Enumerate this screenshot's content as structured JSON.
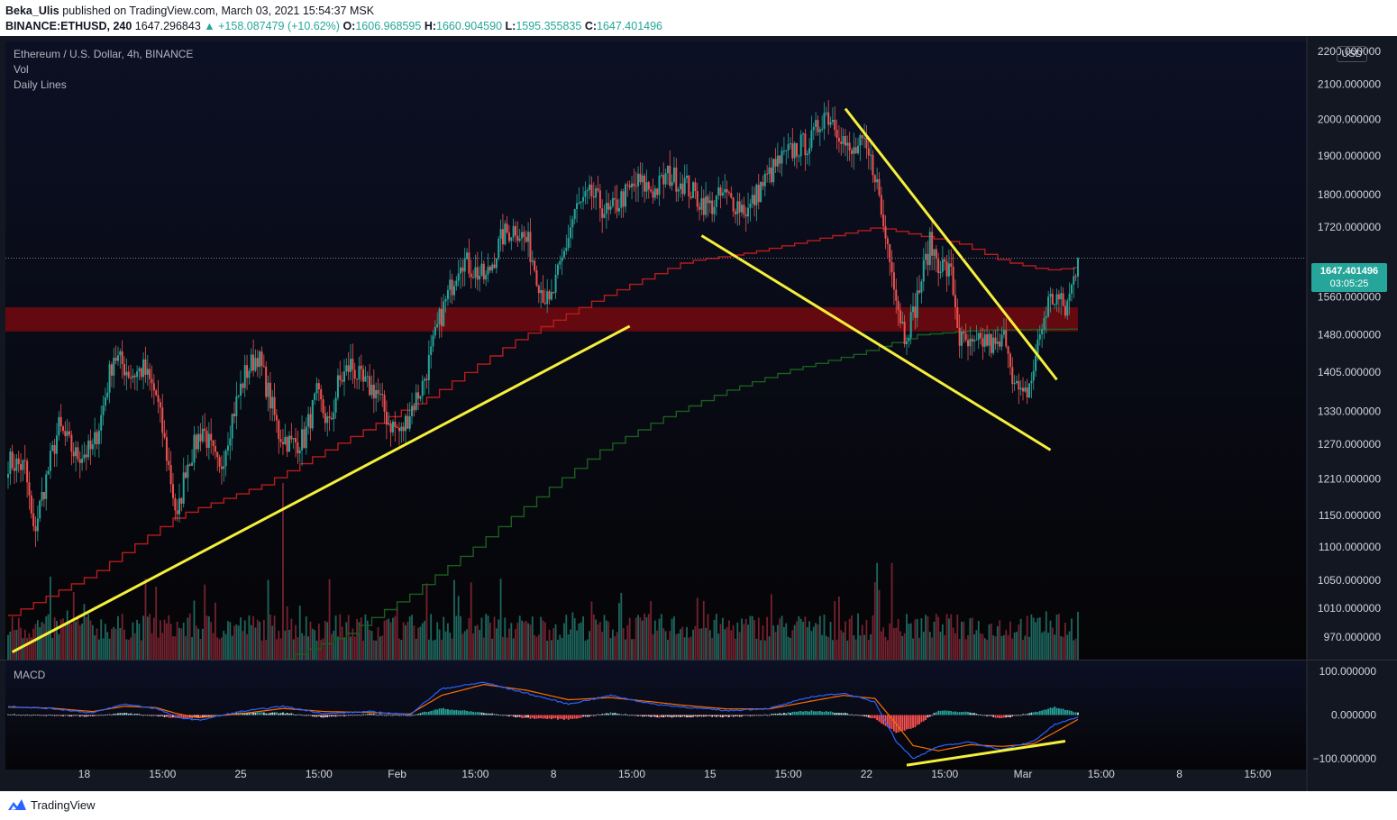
{
  "header": {
    "author": "Beka_Ulis",
    "published_text": "published on TradingView.com, March 03, 2021 15:54:37 MSK",
    "symbol": "BINANCE:ETHUSD, 240",
    "last": "1647.296843",
    "change": "▲ +158.087479 (+10.62%)",
    "o_label": "O:",
    "o_value": "1606.968595",
    "h_label": "H:",
    "h_value": "1660.904590",
    "l_label": "L:",
    "l_value": "1595.355835",
    "c_label": "C:",
    "c_value": "1647.401496"
  },
  "legend": {
    "title": "Ethereum / U.S. Dollar, 4h, BINANCE",
    "vol": "Vol",
    "daily": "Daily Lines",
    "macd": "MACD"
  },
  "currency": "USD",
  "price_label": {
    "value": "1647.401496",
    "countdown": "03:05:25"
  },
  "footer": {
    "brand": "TradingView"
  },
  "colors": {
    "background": "#0c0e1a",
    "up": "#26a69a",
    "down": "#ef5350",
    "resistance_band": "#6b0a0f",
    "trendline": "#f5f03a",
    "daily_red": "#b71c1c",
    "daily_green": "#1b5e20",
    "macd_line": "#2962ff",
    "signal_line": "#ff6d00"
  },
  "chart_data": {
    "type": "candlestick",
    "title": "Ethereum / U.S. Dollar, 4h, BINANCE",
    "y_scale": "log",
    "ylim": [
      940,
      2230
    ],
    "y_ticks": [
      970,
      1010,
      1050,
      1100,
      1150,
      1210,
      1270,
      1330,
      1405,
      1480,
      1560,
      1720,
      1800,
      1900,
      2000,
      2100,
      2200
    ],
    "y_tick_labels": [
      "970.000000",
      "1010.000000",
      "1050.000000",
      "1100.000000",
      "1150.000000",
      "1210.000000",
      "1270.000000",
      "1330.000000",
      "1405.000000",
      "1480.000000",
      "1560.000000",
      "1720.000000",
      "1800.000000",
      "1900.000000",
      "2000.000000",
      "2100.000000",
      "2200.000000"
    ],
    "x_tick_labels": [
      "18",
      "15:00",
      "25",
      "15:00",
      "Feb",
      "15:00",
      "8",
      "15:00",
      "15",
      "15:00",
      "22",
      "15:00",
      "Mar",
      "15:00",
      "8",
      "15:00"
    ],
    "x_tick_bars": [
      36,
      73,
      110,
      147,
      184,
      221,
      258,
      295,
      332,
      369,
      406,
      443,
      480,
      517,
      554,
      591
    ],
    "bar_count": 507,
    "last_close": 1647.401496,
    "anchors": [
      [
        0,
        1240
      ],
      [
        8,
        1230
      ],
      [
        12,
        1120
      ],
      [
        16,
        1180
      ],
      [
        24,
        1300
      ],
      [
        32,
        1250
      ],
      [
        40,
        1260
      ],
      [
        44,
        1320
      ],
      [
        50,
        1440
      ],
      [
        58,
        1400
      ],
      [
        64,
        1410
      ],
      [
        70,
        1360
      ],
      [
        76,
        1230
      ],
      [
        80,
        1140
      ],
      [
        84,
        1230
      ],
      [
        92,
        1300
      ],
      [
        100,
        1220
      ],
      [
        106,
        1320
      ],
      [
        112,
        1400
      ],
      [
        118,
        1440
      ],
      [
        124,
        1350
      ],
      [
        128,
        1290
      ],
      [
        134,
        1270
      ],
      [
        140,
        1280
      ],
      [
        146,
        1360
      ],
      [
        152,
        1300
      ],
      [
        156,
        1380
      ],
      [
        162,
        1420
      ],
      [
        168,
        1380
      ],
      [
        174,
        1370
      ],
      [
        180,
        1310
      ],
      [
        186,
        1290
      ],
      [
        190,
        1330
      ],
      [
        196,
        1380
      ],
      [
        200,
        1440
      ],
      [
        204,
        1510
      ],
      [
        210,
        1590
      ],
      [
        214,
        1650
      ],
      [
        220,
        1620
      ],
      [
        226,
        1600
      ],
      [
        234,
        1700
      ],
      [
        240,
        1720
      ],
      [
        246,
        1680
      ],
      [
        252,
        1580
      ],
      [
        256,
        1540
      ],
      [
        262,
        1640
      ],
      [
        268,
        1760
      ],
      [
        276,
        1800
      ],
      [
        284,
        1750
      ],
      [
        290,
        1790
      ],
      [
        298,
        1830
      ],
      [
        306,
        1810
      ],
      [
        312,
        1850
      ],
      [
        320,
        1830
      ],
      [
        326,
        1790
      ],
      [
        332,
        1770
      ],
      [
        338,
        1800
      ],
      [
        344,
        1780
      ],
      [
        350,
        1760
      ],
      [
        356,
        1820
      ],
      [
        364,
        1880
      ],
      [
        372,
        1920
      ],
      [
        380,
        1940
      ],
      [
        386,
        2020
      ],
      [
        390,
        2000
      ],
      [
        394,
        1960
      ],
      [
        398,
        1900
      ],
      [
        404,
        1930
      ],
      [
        410,
        1860
      ],
      [
        414,
        1720
      ],
      [
        418,
        1640
      ],
      [
        420,
        1560
      ],
      [
        424,
        1480
      ],
      [
        428,
        1520
      ],
      [
        432,
        1600
      ],
      [
        436,
        1680
      ],
      [
        440,
        1640
      ],
      [
        446,
        1610
      ],
      [
        450,
        1470
      ],
      [
        456,
        1450
      ],
      [
        462,
        1470
      ],
      [
        468,
        1450
      ],
      [
        472,
        1480
      ],
      [
        476,
        1380
      ],
      [
        480,
        1350
      ],
      [
        484,
        1390
      ],
      [
        488,
        1480
      ],
      [
        492,
        1550
      ],
      [
        496,
        1560
      ],
      [
        500,
        1530
      ],
      [
        503,
        1580
      ],
      [
        506,
        1647
      ]
    ],
    "resistance_band": [
      1487,
      1538
    ],
    "trendlines": [
      {
        "from": [
          2,
          950
        ],
        "to": [
          294,
          1498
        ]
      },
      {
        "from": [
          328,
          1700
        ],
        "to": [
          493,
          1260
        ]
      },
      {
        "from": [
          396,
          2030
        ],
        "to": [
          496,
          1390
        ]
      }
    ],
    "daily_red_anchors": [
      [
        0,
        1000
      ],
      [
        40,
        1060
      ],
      [
        80,
        1150
      ],
      [
        120,
        1200
      ],
      [
        160,
        1280
      ],
      [
        200,
        1360
      ],
      [
        240,
        1470
      ],
      [
        280,
        1560
      ],
      [
        320,
        1640
      ],
      [
        350,
        1660
      ],
      [
        390,
        1700
      ],
      [
        410,
        1720
      ],
      [
        430,
        1700
      ],
      [
        450,
        1680
      ],
      [
        470,
        1640
      ],
      [
        490,
        1620
      ],
      [
        506,
        1626
      ]
    ],
    "daily_green_anchors": [
      [
        130,
        940
      ],
      [
        160,
        975
      ],
      [
        190,
        1030
      ],
      [
        220,
        1100
      ],
      [
        250,
        1180
      ],
      [
        280,
        1260
      ],
      [
        310,
        1320
      ],
      [
        340,
        1370
      ],
      [
        370,
        1410
      ],
      [
        400,
        1440
      ],
      [
        430,
        1480
      ],
      [
        460,
        1490
      ],
      [
        506,
        1492
      ]
    ],
    "volume": {
      "ylim": [
        0,
        450
      ]
    },
    "macd": {
      "ylim": [
        -125,
        125
      ],
      "y_ticks": [
        100,
        0,
        -100
      ],
      "y_tick_labels": [
        "100.000000",
        "0.000000",
        "−100.000000"
      ],
      "macd_anchors": [
        [
          0,
          20
        ],
        [
          20,
          15
        ],
        [
          40,
          5
        ],
        [
          55,
          25
        ],
        [
          70,
          15
        ],
        [
          80,
          -5
        ],
        [
          90,
          -12
        ],
        [
          110,
          8
        ],
        [
          130,
          20
        ],
        [
          150,
          3
        ],
        [
          170,
          8
        ],
        [
          190,
          1
        ],
        [
          205,
          60
        ],
        [
          225,
          75
        ],
        [
          245,
          50
        ],
        [
          265,
          25
        ],
        [
          285,
          45
        ],
        [
          305,
          25
        ],
        [
          320,
          18
        ],
        [
          340,
          10
        ],
        [
          360,
          15
        ],
        [
          380,
          42
        ],
        [
          395,
          50
        ],
        [
          410,
          30
        ],
        [
          420,
          -60
        ],
        [
          428,
          -100
        ],
        [
          440,
          -72
        ],
        [
          455,
          -62
        ],
        [
          470,
          -80
        ],
        [
          485,
          -60
        ],
        [
          495,
          -22
        ],
        [
          506,
          -5
        ]
      ],
      "signal_anchors": [
        [
          0,
          18
        ],
        [
          20,
          16
        ],
        [
          40,
          8
        ],
        [
          55,
          20
        ],
        [
          70,
          17
        ],
        [
          80,
          3
        ],
        [
          90,
          -6
        ],
        [
          110,
          3
        ],
        [
          130,
          15
        ],
        [
          150,
          8
        ],
        [
          170,
          6
        ],
        [
          190,
          2
        ],
        [
          205,
          45
        ],
        [
          225,
          70
        ],
        [
          245,
          57
        ],
        [
          265,
          35
        ],
        [
          285,
          40
        ],
        [
          305,
          30
        ],
        [
          320,
          22
        ],
        [
          340,
          14
        ],
        [
          360,
          14
        ],
        [
          380,
          32
        ],
        [
          395,
          45
        ],
        [
          410,
          38
        ],
        [
          420,
          -20
        ],
        [
          428,
          -70
        ],
        [
          440,
          -82
        ],
        [
          455,
          -68
        ],
        [
          470,
          -72
        ],
        [
          485,
          -66
        ],
        [
          495,
          -40
        ],
        [
          506,
          -10
        ]
      ],
      "divergence_line": {
        "from": [
          425,
          -115
        ],
        "to": [
          500,
          -60
        ]
      }
    }
  }
}
